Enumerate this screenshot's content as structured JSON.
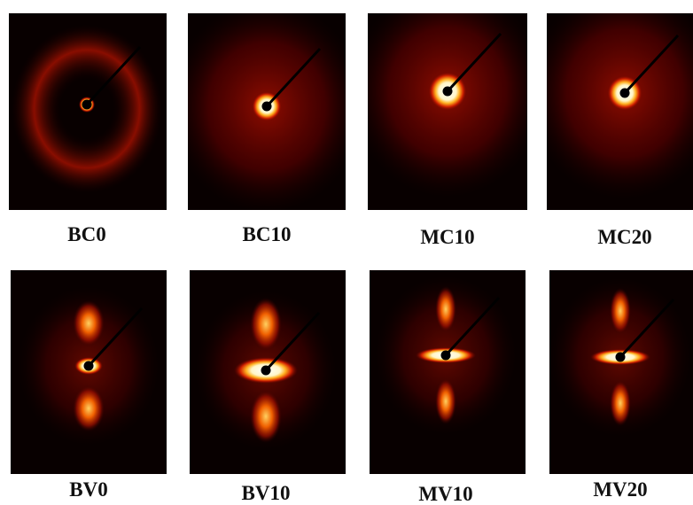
{
  "panels": [
    {
      "label": "BC0"
    },
    {
      "label": "BC10"
    },
    {
      "label": "MC10"
    },
    {
      "label": "MC20"
    },
    {
      "label": "BV0"
    },
    {
      "label": "BV10"
    },
    {
      "label": "MV10"
    },
    {
      "label": "MV20"
    }
  ]
}
